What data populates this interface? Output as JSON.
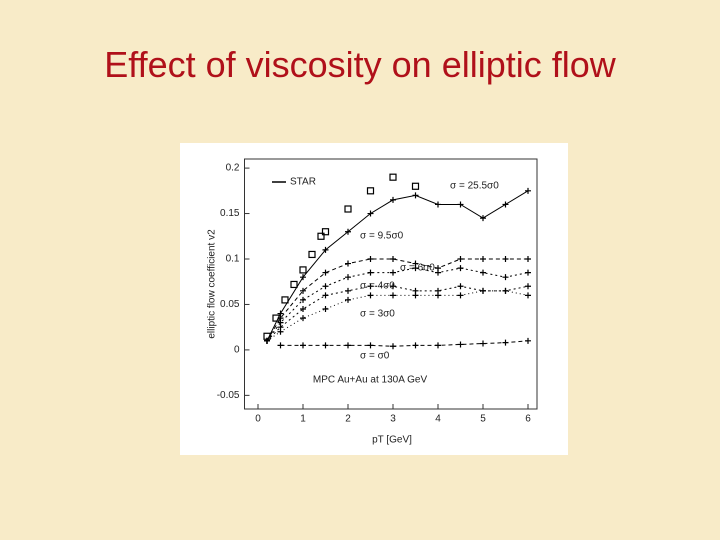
{
  "slide_title": "Effect of viscosity on elliptic flow",
  "chart_data": {
    "type": "line",
    "x_label": "pT [GeV]",
    "y_label": "elliptic flow coefficient v2",
    "annotation": "MPC Au+Au at 130A GeV",
    "xlim": [
      -0.3,
      6.2
    ],
    "xticks": [
      0,
      1,
      2,
      3,
      4,
      5,
      6
    ],
    "ylim": [
      -0.065,
      0.21
    ],
    "yticks": [
      -0.05,
      0,
      0.05,
      0.1,
      0.15,
      0.2
    ],
    "series": [
      {
        "name": "STAR",
        "color": "#000000",
        "marker": "square",
        "x": [
          0.2,
          0.4,
          0.6,
          0.8,
          1.0,
          1.2,
          1.4,
          1.5,
          2.0,
          2.5,
          3.0,
          3.5
        ],
        "values": [
          0.015,
          0.035,
          0.055,
          0.072,
          0.088,
          0.105,
          0.125,
          0.13,
          0.155,
          0.175,
          0.19,
          0.18
        ]
      },
      {
        "name": "σ = 25.5σ0",
        "color": "#000000",
        "marker": "plus",
        "x": [
          0.2,
          0.5,
          1,
          1.5,
          2,
          2.5,
          3,
          3.5,
          4,
          4.5,
          5,
          5.5,
          6
        ],
        "values": [
          0.01,
          0.04,
          0.08,
          0.11,
          0.13,
          0.15,
          0.165,
          0.17,
          0.16,
          0.16,
          0.145,
          0.16,
          0.175
        ]
      },
      {
        "name": "σ = 9.5σ0",
        "color": "#000000",
        "marker": "plus",
        "x": [
          0.2,
          0.5,
          1,
          1.5,
          2,
          2.5,
          3,
          3.5,
          4,
          4.5,
          5,
          5.5,
          6
        ],
        "values": [
          0.01,
          0.035,
          0.065,
          0.085,
          0.095,
          0.1,
          0.1,
          0.095,
          0.09,
          0.1,
          0.1,
          0.1,
          0.1
        ]
      },
      {
        "name": "σ = 6σ0",
        "color": "#000000",
        "marker": "plus",
        "x": [
          0.2,
          0.5,
          1,
          1.5,
          2,
          2.5,
          3,
          3.5,
          4,
          4.5,
          5,
          5.5,
          6
        ],
        "values": [
          0.01,
          0.03,
          0.055,
          0.07,
          0.08,
          0.085,
          0.085,
          0.09,
          0.085,
          0.09,
          0.085,
          0.08,
          0.085
        ]
      },
      {
        "name": "σ = 4σ0",
        "color": "#000000",
        "marker": "plus",
        "x": [
          0.2,
          0.5,
          1,
          1.5,
          2,
          2.5,
          3,
          3.5,
          4,
          4.5,
          5,
          5.5,
          6
        ],
        "values": [
          0.01,
          0.025,
          0.045,
          0.06,
          0.065,
          0.07,
          0.07,
          0.065,
          0.065,
          0.07,
          0.065,
          0.065,
          0.07
        ]
      },
      {
        "name": "σ = 3σ0",
        "color": "#000000",
        "marker": "plus",
        "x": [
          0.2,
          0.5,
          1,
          1.5,
          2,
          2.5,
          3,
          3.5,
          4,
          4.5,
          5,
          5.5,
          6
        ],
        "values": [
          0.01,
          0.02,
          0.035,
          0.045,
          0.055,
          0.06,
          0.06,
          0.06,
          0.06,
          0.06,
          0.065,
          0.065,
          0.06
        ]
      },
      {
        "name": "σ = σ0",
        "color": "#000000",
        "marker": "plus",
        "x": [
          0.5,
          1,
          1.5,
          2,
          2.5,
          3,
          3.5,
          4,
          4.5,
          5,
          5.5,
          6
        ],
        "values": [
          0.005,
          0.005,
          0.005,
          0.005,
          0.005,
          0.004,
          0.005,
          0.005,
          0.006,
          0.007,
          0.008,
          0.01
        ]
      }
    ]
  }
}
